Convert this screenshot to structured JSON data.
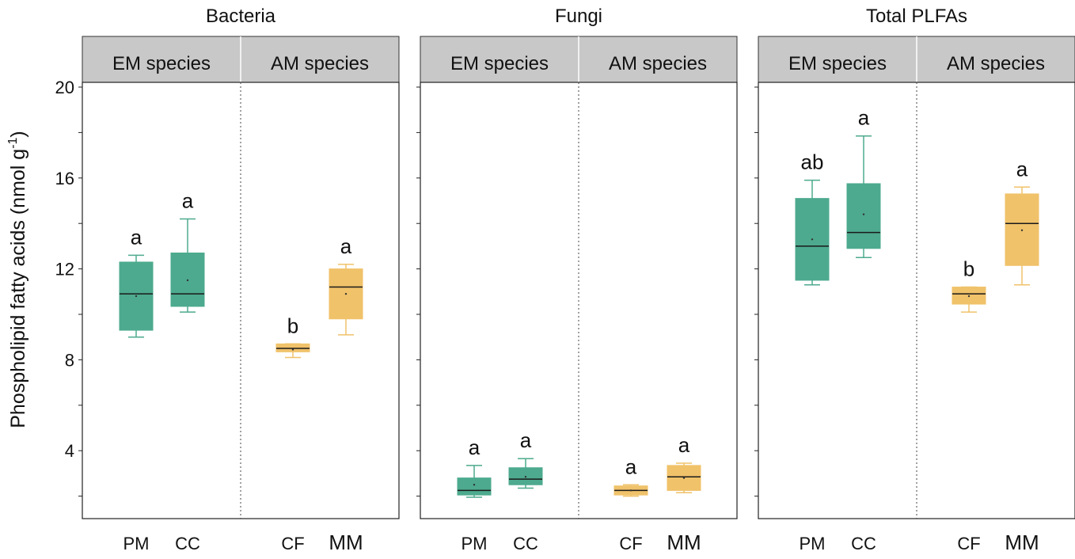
{
  "colors": {
    "em": "#4daa8e",
    "am": "#f0c26a",
    "strip": "#c8c8c8",
    "median": "#1a1a1a"
  },
  "chart_data": {
    "type": "box",
    "ylabel": "Phospholipid fatty acids (nmol g",
    "ylabel_sup": "-1",
    "ylabel_close": ")",
    "ylim": [
      1.8,
      20
    ],
    "y_ticks_labeled": [
      "4",
      "8",
      "12",
      "16",
      "20"
    ],
    "y_ticks_all": [
      2,
      4,
      6,
      8,
      10,
      12,
      14,
      16,
      18,
      20
    ],
    "strip_labels": [
      "EM species",
      "AM species"
    ],
    "panels": [
      {
        "title": "Bacteria",
        "boxes": [
          {
            "category": "PM",
            "group": "em",
            "min": 9.0,
            "q1": 9.3,
            "median": 10.9,
            "q3": 12.3,
            "max": 12.6,
            "mean": 10.8,
            "letter": "a"
          },
          {
            "category": "CC",
            "group": "em",
            "min": 10.1,
            "q1": 10.35,
            "median": 10.9,
            "q3": 12.7,
            "max": 14.2,
            "mean": 11.5,
            "letter": "a"
          },
          {
            "category": "CF",
            "group": "am",
            "min": 8.1,
            "q1": 8.35,
            "median": 8.5,
            "q3": 8.7,
            "max": 8.7,
            "mean": 8.45,
            "letter": "b"
          },
          {
            "category": "MM",
            "group": "am",
            "min": 9.1,
            "q1": 9.8,
            "median": 11.2,
            "q3": 12.0,
            "max": 12.2,
            "mean": 10.9,
            "letter": "a"
          }
        ]
      },
      {
        "title": "Fungi",
        "boxes": [
          {
            "category": "PM",
            "group": "em",
            "min": 1.95,
            "q1": 2.05,
            "median": 2.25,
            "q3": 2.8,
            "max": 3.35,
            "mean": 2.5,
            "letter": "a"
          },
          {
            "category": "CC",
            "group": "em",
            "min": 2.35,
            "q1": 2.5,
            "median": 2.75,
            "q3": 3.25,
            "max": 3.65,
            "mean": 2.85,
            "letter": "a"
          },
          {
            "category": "CF",
            "group": "am",
            "min": 2.0,
            "q1": 2.05,
            "median": 2.25,
            "q3": 2.45,
            "max": 2.5,
            "mean": 2.25,
            "letter": "a"
          },
          {
            "category": "MM",
            "group": "am",
            "min": 2.15,
            "q1": 2.25,
            "median": 2.85,
            "q3": 3.35,
            "max": 3.45,
            "mean": 2.8,
            "letter": "a"
          }
        ]
      },
      {
        "title": "Total PLFAs",
        "boxes": [
          {
            "category": "PM",
            "group": "em",
            "min": 11.3,
            "q1": 11.5,
            "median": 13.0,
            "q3": 15.1,
            "max": 15.9,
            "mean": 13.3,
            "letter": "ab"
          },
          {
            "category": "CC",
            "group": "em",
            "min": 12.5,
            "q1": 12.9,
            "median": 13.6,
            "q3": 15.75,
            "max": 17.85,
            "mean": 14.4,
            "letter": "a"
          },
          {
            "category": "CF",
            "group": "am",
            "min": 10.1,
            "q1": 10.45,
            "median": 10.9,
            "q3": 11.2,
            "max": 11.2,
            "mean": 10.8,
            "letter": "b"
          },
          {
            "category": "MM",
            "group": "am",
            "min": 11.3,
            "q1": 12.15,
            "median": 14.0,
            "q3": 15.3,
            "max": 15.6,
            "mean": 13.7,
            "letter": "a"
          }
        ]
      }
    ]
  }
}
